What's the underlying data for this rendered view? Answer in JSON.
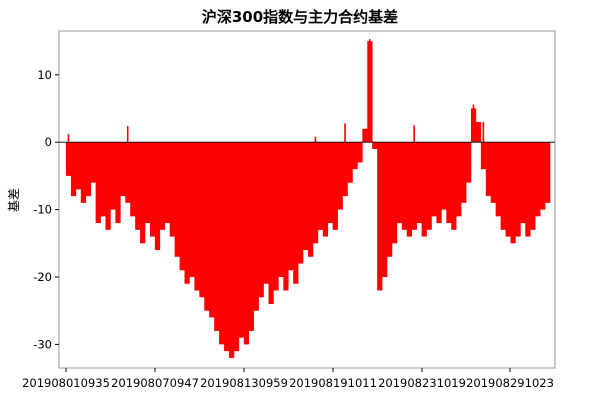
{
  "chart_data": {
    "type": "bar",
    "title": "沪深300指数与主力合约基差",
    "xlabel": "",
    "ylabel": "基差",
    "ylim": [
      -33.5,
      16.5
    ],
    "yticks": [
      10,
      0,
      -10,
      -20,
      -30
    ],
    "xticks": [
      "201908010935",
      "201908070947",
      "201908130959",
      "201908191011",
      "201908231019",
      "201908291023"
    ],
    "grid": false,
    "legend": "none",
    "bar_color": "#ff0000",
    "series": [
      {
        "values": [
          -5,
          -8,
          -7,
          -9,
          -8,
          -6,
          -12,
          -11,
          -13,
          -10,
          -12,
          -8,
          -9,
          -11,
          -13,
          -15,
          -12,
          -14,
          -16,
          -13,
          -12,
          -14,
          -17,
          -19,
          -21,
          -20,
          -22,
          -23,
          -25,
          -26,
          -28,
          -30,
          -31,
          -32,
          -31,
          -29,
          -30,
          -28,
          -25,
          -23,
          -21,
          -24,
          -22,
          -20,
          -22,
          -19,
          -21,
          -18,
          -16,
          -17,
          -15,
          -13,
          -14,
          -12,
          -13,
          -10,
          -8,
          -6,
          -4,
          -3,
          2,
          15,
          -1,
          -22,
          -20,
          -17,
          -15,
          -12,
          -13,
          -14,
          -13,
          -12,
          -14,
          -13,
          -11,
          -12,
          -10,
          -12,
          -13,
          -11,
          -9,
          -6,
          5,
          3,
          -4,
          -8,
          -9,
          -11,
          -13,
          -14,
          -15,
          -14,
          -12,
          -14,
          -13,
          -11,
          -10,
          -9
        ]
      }
    ],
    "spikes": [
      {
        "index": 0,
        "value": 1.2
      },
      {
        "index": 12,
        "value": 2.4
      },
      {
        "index": 50,
        "value": 0.8
      },
      {
        "index": 56,
        "value": 2.8
      },
      {
        "index": 61,
        "value": 15.3
      },
      {
        "index": 70,
        "value": 2.5
      },
      {
        "index": 82,
        "value": 5.6
      },
      {
        "index": 84,
        "value": 3.0
      }
    ]
  }
}
